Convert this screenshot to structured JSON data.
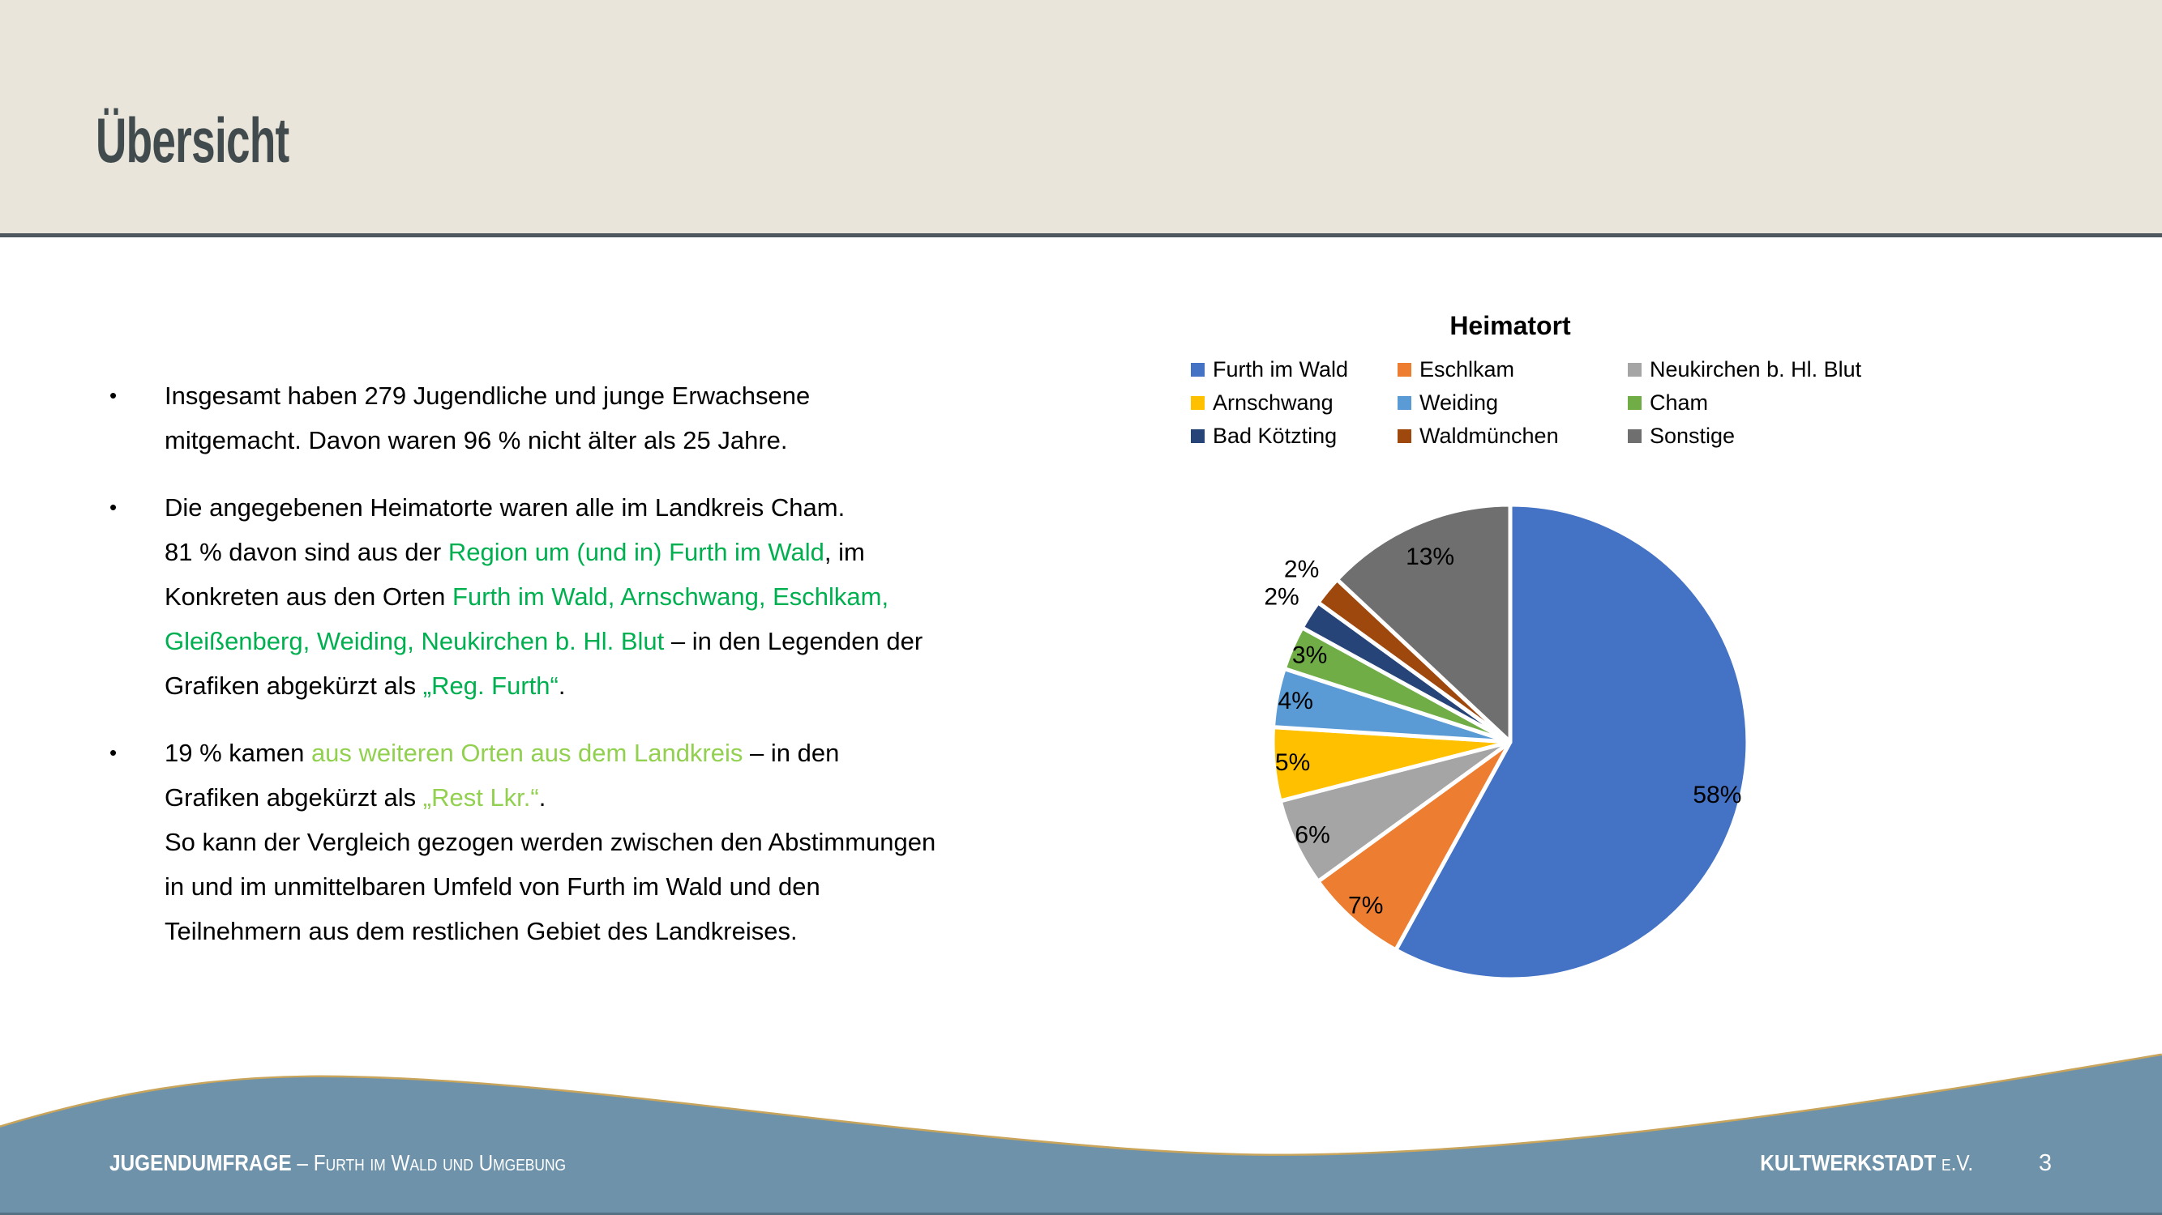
{
  "slide": {
    "title": "Übersicht",
    "page_number": "3"
  },
  "footer": {
    "left_primary": "JUGENDUMFRAGE",
    "left_separator": " – ",
    "left_secondary": "Furth im Wald und Umgebung",
    "right_primary": "KULTWERKSTADT",
    "right_secondary": "e.V."
  },
  "colors": {
    "header_bg": "#E9E5DB",
    "header_rule": "#4E575E",
    "title_text": "#414B4D",
    "body_text": "#000000",
    "green": "#00B050",
    "light_green": "#92D050",
    "footer_band": "#6E92AA",
    "wave_edge_gold": "#C9A45B",
    "footer_text": "#FFFFFF"
  },
  "bullets": [
    {
      "lines": [
        [
          {
            "t": "Insgesamt haben 279 Jugendliche und junge Erwachsene"
          }
        ],
        [
          {
            "t": "mitgemacht. Davon waren 96 % nicht älter als 25 Jahre."
          }
        ]
      ]
    },
    {
      "lines": [
        [
          {
            "t": "Die angegebenen Heimatorte waren alle im Landkreis Cham."
          }
        ],
        [
          {
            "t": "81 % davon sind aus der "
          },
          {
            "t": "Region um (und in) Furth im Wald",
            "c": "green"
          },
          {
            "t": ", im"
          }
        ],
        [
          {
            "t": "Konkreten aus den Orten "
          },
          {
            "t": "Furth im Wald, Arnschwang, Eschlkam,",
            "c": "green"
          }
        ],
        [
          {
            "t": "Gleißenberg, Weiding, Neukirchen b. Hl. Blut",
            "c": "green"
          },
          {
            "t": " – in den Legenden der"
          }
        ],
        [
          {
            "t": "Grafiken abgekürzt als "
          },
          {
            "t": "„Reg. Furth“",
            "c": "green"
          },
          {
            "t": "."
          }
        ]
      ]
    },
    {
      "lines": [
        [
          {
            "t": "19 % kamen "
          },
          {
            "t": "aus weiteren Orten aus dem Landkreis",
            "c": "light_green"
          },
          {
            "t": " – in den"
          }
        ],
        [
          {
            "t": "Grafiken abgekürzt als "
          },
          {
            "t": "„Rest Lkr.“",
            "c": "light_green"
          },
          {
            "t": "."
          }
        ],
        [
          {
            "t": "So kann der Vergleich gezogen werden zwischen den Abstimmungen"
          }
        ],
        [
          {
            "t": "in und im unmittelbaren Umfeld von Furth im Wald und den"
          }
        ],
        [
          {
            "t": "Teilnehmern aus dem restlichen Gebiet des Landkreises."
          }
        ]
      ]
    }
  ],
  "chart_data": {
    "type": "pie",
    "title": "Heimatort",
    "categories": [
      "Furth im Wald",
      "Eschlkam",
      "Neukirchen b. Hl. Blut",
      "Arnschwang",
      "Weiding",
      "Cham",
      "Bad Kötzting",
      "Waldmünchen",
      "Sonstige"
    ],
    "values": [
      58,
      7,
      6,
      5,
      4,
      3,
      2,
      2,
      13
    ],
    "labels": [
      "58%",
      "7%",
      "6%",
      "5%",
      "4%",
      "3%",
      "2%",
      "2%",
      "13%"
    ],
    "colors": [
      "#4472C4",
      "#ED7D31",
      "#A5A5A5",
      "#FFC000",
      "#5B9BD5",
      "#70AD47",
      "#264478",
      "#9E480E",
      "#6F6F6F"
    ],
    "start_angle_deg": 0,
    "direction": "clockwise",
    "legend_position": "top",
    "legend_columns": 3,
    "label_radius_factors": [
      0.9,
      0.92,
      0.92,
      0.92,
      0.92,
      0.92,
      1.14,
      1.14,
      0.85
    ],
    "slice_gap_color": "#FFFFFF"
  }
}
